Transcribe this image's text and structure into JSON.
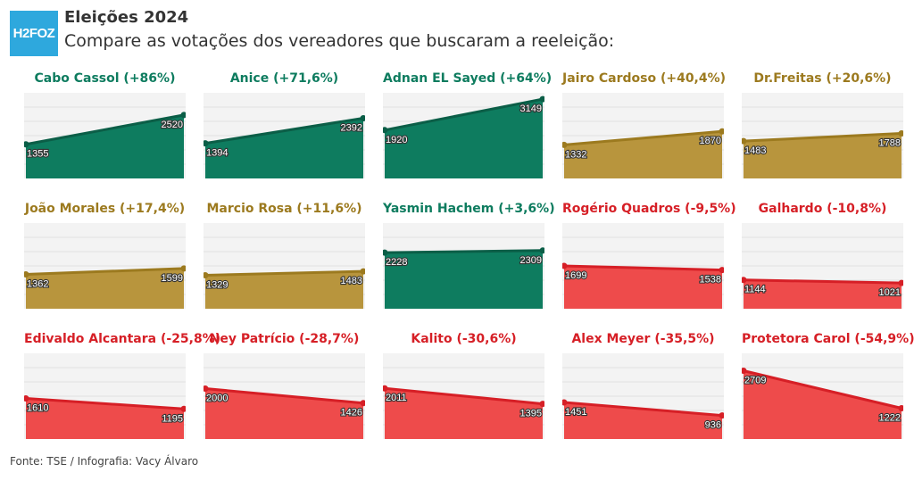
{
  "header": {
    "logo": "H2FOZ",
    "title": "Eleições 2024",
    "subtitle": "Compare as votações dos vereadores que buscaram a reeleição:"
  },
  "source": "Fonte: TSE / Infografia: Vacy Álvaro",
  "colors": {
    "green": "#0e7c5f",
    "gold": "#b8953d",
    "red": "#ee4b4b",
    "red_line": "#d61f26",
    "gold_line": "#9c7a1f",
    "green_line": "#0b5e47"
  },
  "chart_data": [
    {
      "type": "area",
      "title": "Cabo Cassol (+86%)",
      "color": "green",
      "values": [
        1355,
        2520
      ]
    },
    {
      "type": "area",
      "title": "Anice (+71,6%)",
      "color": "green",
      "values": [
        1394,
        2392
      ]
    },
    {
      "type": "area",
      "title": "Adnan EL Sayed (+64%)",
      "color": "green",
      "values": [
        1920,
        3149
      ]
    },
    {
      "type": "area",
      "title": "Jairo Cardoso (+40,4%)",
      "color": "gold",
      "values": [
        1332,
        1870
      ]
    },
    {
      "type": "area",
      "title": "Dr.Freitas (+20,6%)",
      "color": "gold",
      "values": [
        1483,
        1788
      ]
    },
    {
      "type": "area",
      "title": "João Morales (+17,4%)",
      "color": "gold",
      "values": [
        1362,
        1599
      ]
    },
    {
      "type": "area",
      "title": "Marcio Rosa (+11,6%)",
      "color": "gold",
      "values": [
        1329,
        1483
      ]
    },
    {
      "type": "area",
      "title": "Yasmin Hachem (+3,6%)",
      "color": "green",
      "values": [
        2228,
        2309
      ]
    },
    {
      "type": "area",
      "title": "Rogério Quadros (-9,5%)",
      "color": "red",
      "values": [
        1699,
        1538
      ]
    },
    {
      "type": "area",
      "title": "Galhardo (-10,8%)",
      "color": "red",
      "values": [
        1144,
        1021
      ]
    },
    {
      "type": "area",
      "title": "Edivaldo Alcantara (-25,8%)",
      "color": "red",
      "values": [
        1610,
        1195
      ]
    },
    {
      "type": "area",
      "title": "Ney Patrício (-28,7%)",
      "color": "red",
      "values": [
        2000,
        1426
      ]
    },
    {
      "type": "area",
      "title": "Kalito (-30,6%)",
      "color": "red",
      "values": [
        2011,
        1395
      ]
    },
    {
      "type": "area",
      "title": "Alex Meyer (-35,5%)",
      "color": "red",
      "values": [
        1451,
        936
      ]
    },
    {
      "type": "area",
      "title": "Protetora Carol (-54,9%)",
      "color": "red",
      "values": [
        2709,
        1222
      ]
    }
  ]
}
